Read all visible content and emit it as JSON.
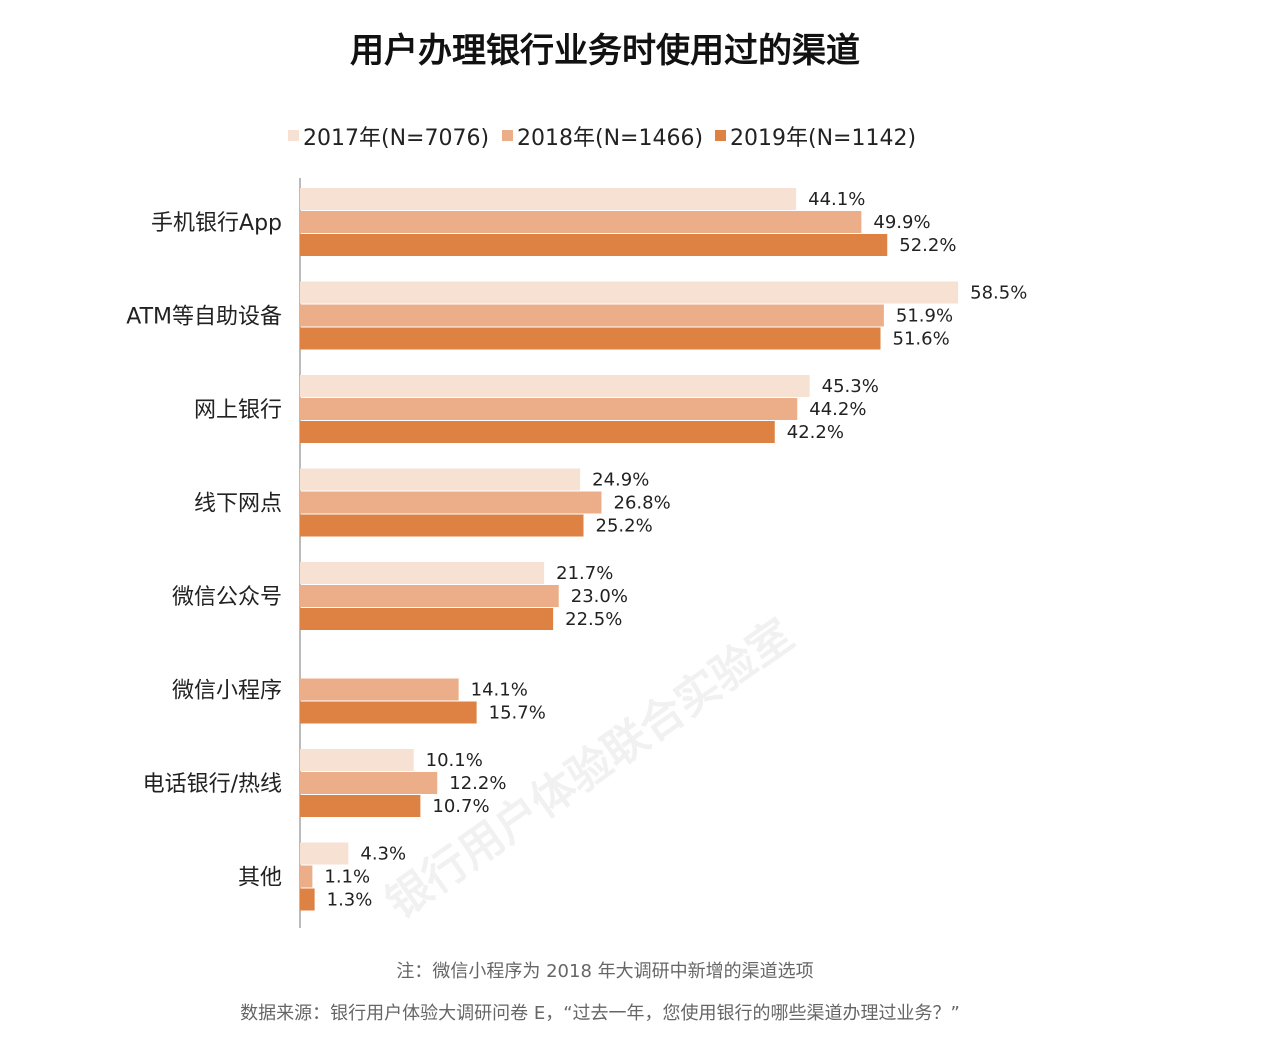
{
  "chart_data": {
    "type": "bar",
    "orientation": "horizontal",
    "title": "用户办理银行业务时使用过的渠道",
    "categories": [
      "手机银行App",
      "ATM等自助设备",
      "网上银行",
      "线下网点",
      "微信公众号",
      "微信小程序",
      "电话银行/热线",
      "其他"
    ],
    "series": [
      {
        "name": "2017年(N=7076)",
        "color": "#f7e1d3",
        "values": [
          44.1,
          58.5,
          45.3,
          24.9,
          21.7,
          null,
          10.1,
          4.3
        ],
        "labels": [
          "44.1%",
          "58.5%",
          "45.3%",
          "24.9%",
          "21.7%",
          "",
          "10.1%",
          "4.3%"
        ]
      },
      {
        "name": "2018年(N=1466)",
        "color": "#ecae88",
        "values": [
          49.9,
          51.9,
          44.2,
          26.8,
          23.0,
          14.1,
          12.2,
          1.1
        ],
        "labels": [
          "49.9%",
          "51.9%",
          "44.2%",
          "26.8%",
          "23.0%",
          "14.1%",
          "12.2%",
          "1.1%"
        ]
      },
      {
        "name": "2019年(N=1142)",
        "color": "#de8243",
        "values": [
          52.2,
          51.6,
          42.2,
          25.2,
          22.5,
          15.7,
          10.7,
          1.3
        ],
        "labels": [
          "52.2%",
          "51.6%",
          "42.2%",
          "25.2%",
          "22.5%",
          "15.7%",
          "10.7%",
          "1.3%"
        ]
      }
    ],
    "xlim": [
      0,
      60
    ],
    "legend_position": "top",
    "grid": false,
    "axis_color": "#bbbbbb"
  },
  "footer": {
    "note": "注：微信小程序为 2018 年大调研中新增的渠道选项",
    "source": "数据来源：银行用户体验大调研问卷 E，“过去一年，您使用银行的哪些渠道办理过业务？”"
  },
  "watermark": {
    "text": "银行用户体验联合实验室"
  }
}
